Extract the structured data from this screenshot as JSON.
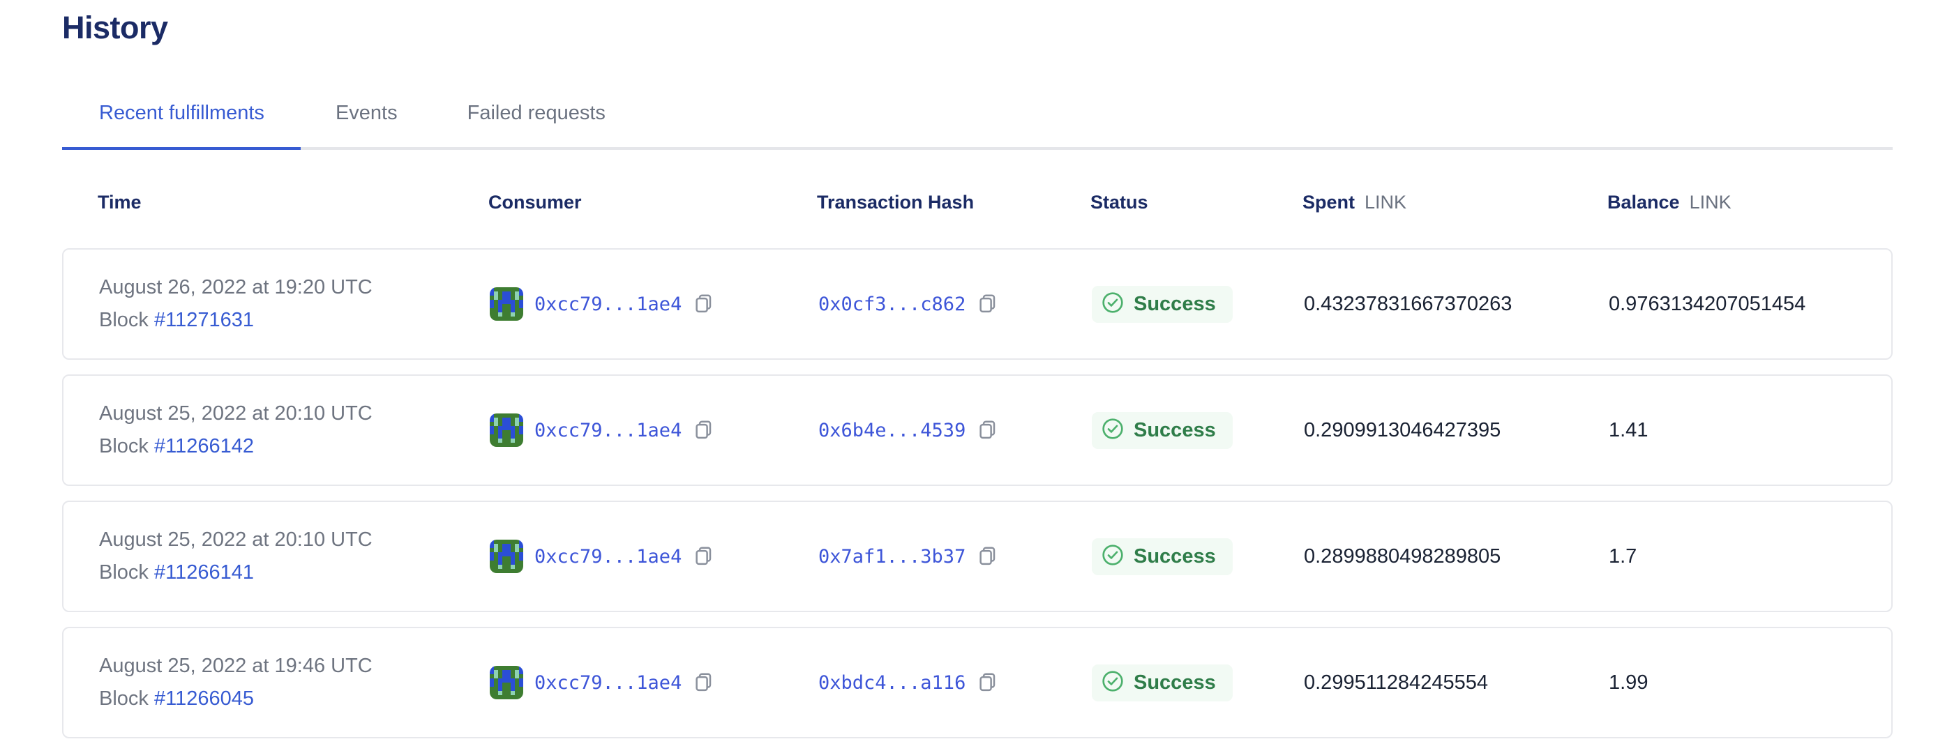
{
  "page": {
    "title": "History"
  },
  "tabs": [
    {
      "label": "Recent fulfillments",
      "active": true
    },
    {
      "label": "Events",
      "active": false
    },
    {
      "label": "Failed requests",
      "active": false
    }
  ],
  "colors": {
    "brand_blue": "#375bd2",
    "heading_navy": "#1b2b65",
    "hash_link_blue": "#3d55d8",
    "muted_gray": "#6e7480",
    "success_green": "#4cb06c",
    "success_text": "#2f7d49",
    "success_bg": "#f2faf4",
    "card_border": "#e7e8ec"
  },
  "avatar": {
    "palette": {
      "G": "#3e7d31",
      "B": "#2b4ed6",
      "T": "#8ed2b2"
    },
    "rows": [
      "BGGGGGGB",
      "BTGBBGTB",
      "GTGBBGTG",
      "BGBBBBGB",
      "BGBGGBGB",
      "GGBGGBGG",
      "GGTGGTGG",
      "GGGGGGGG"
    ]
  },
  "table": {
    "block_label": "Block",
    "columns": {
      "time": "Time",
      "consumer": "Consumer",
      "tx_hash": "Transaction Hash",
      "status": "Status",
      "spent": "Spent",
      "balance": "Balance",
      "link_unit": "LINK"
    },
    "rows": [
      {
        "time": "August 26, 2022 at 19:20 UTC",
        "block": "#11271631",
        "consumer": "0xcc79...1ae4",
        "tx_hash": "0x0cf3...c862",
        "status": "Success",
        "spent": "0.43237831667370263",
        "balance": "0.9763134207051454"
      },
      {
        "time": "August 25, 2022 at 20:10 UTC",
        "block": "#11266142",
        "consumer": "0xcc79...1ae4",
        "tx_hash": "0x6b4e...4539",
        "status": "Success",
        "spent": "0.2909913046427395",
        "balance": "1.41"
      },
      {
        "time": "August 25, 2022 at 20:10 UTC",
        "block": "#11266141",
        "consumer": "0xcc79...1ae4",
        "tx_hash": "0x7af1...3b37",
        "status": "Success",
        "spent": "0.2899880498289805",
        "balance": "1.7"
      },
      {
        "time": "August 25, 2022 at 19:46 UTC",
        "block": "#11266045",
        "consumer": "0xcc79...1ae4",
        "tx_hash": "0xbdc4...a116",
        "status": "Success",
        "spent": "0.299511284245554",
        "balance": "1.99"
      }
    ]
  }
}
